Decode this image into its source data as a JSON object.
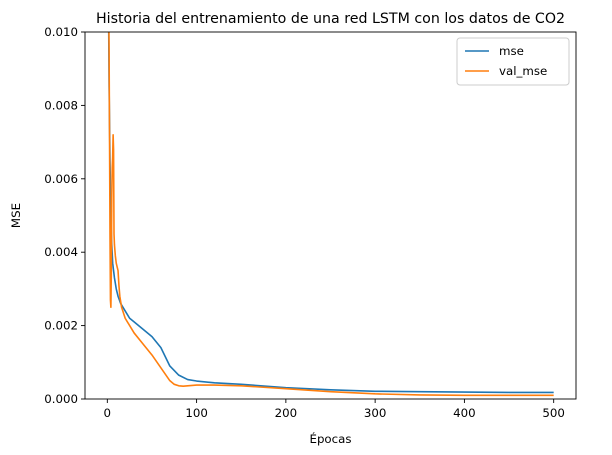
{
  "chart_data": {
    "type": "line",
    "title": "Historia del entrenamiento de una red LSTM con los datos de CO2",
    "xlabel": "Épocas",
    "ylabel": "MSE",
    "xlim": [
      -25,
      525
    ],
    "ylim": [
      0,
      0.01
    ],
    "xticks": [
      0,
      100,
      200,
      300,
      400,
      500
    ],
    "yticks": [
      0.0,
      0.002,
      0.004,
      0.006,
      0.008,
      0.01
    ],
    "xtick_labels": [
      "0",
      "100",
      "200",
      "300",
      "400",
      "500"
    ],
    "ytick_labels": [
      "0.000",
      "0.002",
      "0.004",
      "0.006",
      "0.008",
      "0.010"
    ],
    "grid": false,
    "legend_position": "top-right",
    "series": [
      {
        "name": "mse",
        "color": "#1f77b4",
        "x": [
          1,
          2,
          3,
          4,
          5,
          6,
          8,
          10,
          12,
          15,
          20,
          25,
          30,
          40,
          50,
          60,
          70,
          80,
          90,
          100,
          120,
          150,
          200,
          250,
          300,
          350,
          400,
          450,
          500
        ],
        "y": [
          0.012,
          0.0085,
          0.0065,
          0.005,
          0.0042,
          0.0037,
          0.0033,
          0.003,
          0.0028,
          0.0026,
          0.0024,
          0.0022,
          0.0021,
          0.0019,
          0.0017,
          0.0014,
          0.0009,
          0.00065,
          0.00053,
          0.00049,
          0.00044,
          0.0004,
          0.00031,
          0.00025,
          0.00021,
          0.0002,
          0.00019,
          0.00018,
          0.00018
        ]
      },
      {
        "name": "val_mse",
        "color": "#ff7f0e",
        "x": [
          1,
          2,
          3,
          3.5,
          4,
          4.5,
          5,
          5.5,
          6,
          6.5,
          7,
          7.5,
          8,
          9,
          10,
          11,
          12,
          13,
          14,
          16,
          20,
          25,
          30,
          40,
          50,
          60,
          70,
          75,
          80,
          85,
          90,
          100,
          120,
          150,
          200,
          250,
          300,
          350,
          400,
          450,
          500
        ],
        "y": [
          0.0125,
          0.0095,
          0.0045,
          0.0027,
          0.0025,
          0.0035,
          0.0055,
          0.0063,
          0.0066,
          0.0072,
          0.0068,
          0.0045,
          0.0042,
          0.0039,
          0.0037,
          0.0036,
          0.0035,
          0.0031,
          0.0028,
          0.0025,
          0.0022,
          0.002,
          0.0018,
          0.0015,
          0.0012,
          0.00085,
          0.0005,
          0.0004,
          0.00036,
          0.00035,
          0.00036,
          0.00038,
          0.00038,
          0.00036,
          0.00028,
          0.0002,
          0.00014,
          0.00011,
          0.0001,
          0.0001,
          0.0001
        ]
      }
    ]
  }
}
